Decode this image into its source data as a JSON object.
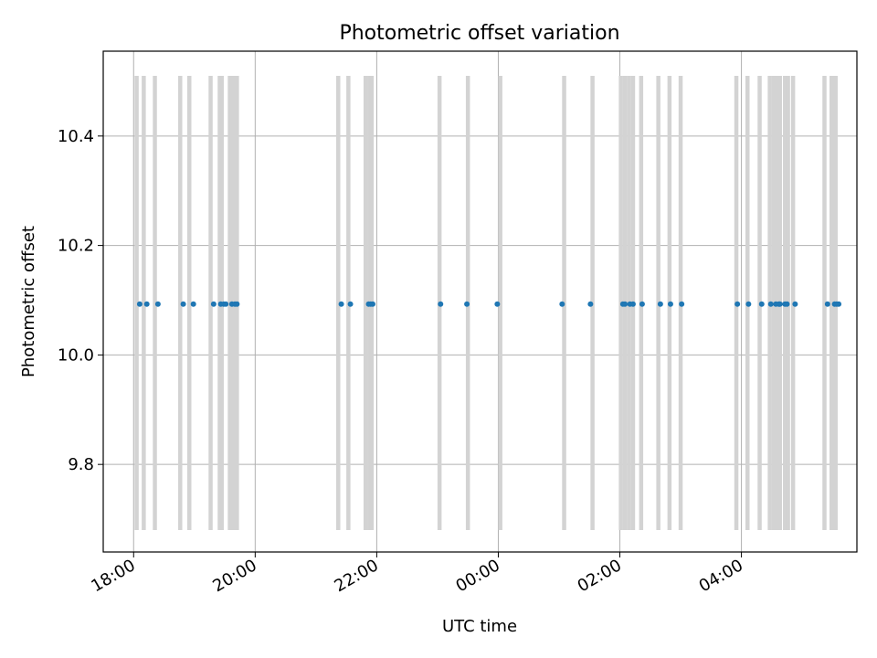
{
  "chart_data": {
    "type": "scatter",
    "title": "Photometric offset variation",
    "xlabel": "UTC time",
    "ylabel": "Photometric offset",
    "x_tick_labels": [
      "18:00",
      "20:00",
      "22:00",
      "00:00",
      "02:00",
      "04:00"
    ],
    "y_tick_labels": [
      "9.8",
      "10.0",
      "10.2",
      "10.4"
    ],
    "y_ticks": [
      9.8,
      10.0,
      10.2,
      10.4
    ],
    "ylim": [
      9.64,
      10.555
    ],
    "xlim_hours": [
      17.5,
      29.9
    ],
    "grid": true,
    "series": [
      {
        "name": "",
        "color": "#1f77b4",
        "x": [
          "18:06",
          "18:13",
          "18:24",
          "18:49",
          "18:59",
          "19:19",
          "19:26",
          "19:29",
          "19:31",
          "19:37",
          "19:40",
          "19:42",
          "21:25",
          "21:34",
          "21:52",
          "21:54",
          "21:56",
          "23:03",
          "23:29",
          "23:59",
          "01:03",
          "01:31",
          "02:03",
          "02:05",
          "02:10",
          "02:13",
          "02:22",
          "02:40",
          "02:50",
          "03:01",
          "03:56",
          "04:07",
          "04:20",
          "04:29",
          "04:34",
          "04:37",
          "04:38",
          "04:43",
          "04:45",
          "04:53",
          "05:25",
          "05:32",
          "05:36",
          "05:34"
        ],
        "y": [
          10.093,
          10.093,
          10.093,
          10.093,
          10.093,
          10.093,
          10.093,
          10.093,
          10.093,
          10.093,
          10.093,
          10.093,
          10.093,
          10.093,
          10.093,
          10.093,
          10.093,
          10.093,
          10.093,
          10.093,
          10.093,
          10.093,
          10.093,
          10.093,
          10.093,
          10.093,
          10.093,
          10.093,
          10.093,
          10.093,
          10.093,
          10.093,
          10.093,
          10.093,
          10.093,
          10.093,
          10.093,
          10.093,
          10.093,
          10.093,
          10.093,
          10.093,
          10.093,
          10.093
        ]
      }
    ],
    "vlines": {
      "color": "#d3d3d3",
      "ymin": 9.68,
      "ymax": 10.51,
      "x": [
        "18:03",
        "18:10",
        "18:21",
        "18:46",
        "18:55",
        "19:16",
        "19:25",
        "19:27",
        "19:35",
        "19:37",
        "19:40",
        "19:42",
        "21:22",
        "21:32",
        "21:49",
        "21:53",
        "21:55",
        "23:02",
        "23:30",
        "24:02",
        "01:05",
        "01:33",
        "02:01",
        "02:05",
        "02:09",
        "02:13",
        "02:21",
        "02:38",
        "02:49",
        "03:00",
        "03:55",
        "04:06",
        "04:18",
        "04:28",
        "04:32",
        "04:35",
        "04:38",
        "04:43",
        "04:46",
        "04:51",
        "05:22",
        "05:29",
        "05:33"
      ]
    }
  }
}
